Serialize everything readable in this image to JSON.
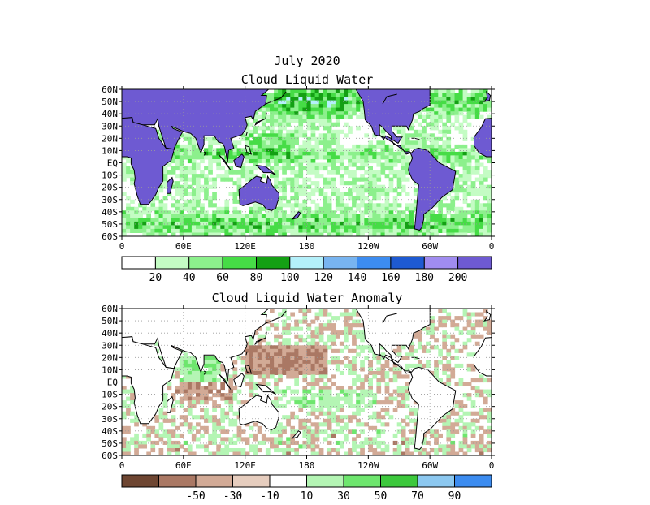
{
  "figure": {
    "date_title": "July 2020"
  },
  "chart_data": [
    {
      "type": "heatmap",
      "title": "Cloud Liquid Water",
      "region": "global ocean map",
      "lat_ticks": [
        "60N",
        "50N",
        "40N",
        "30N",
        "20N",
        "10N",
        "EQ",
        "10S",
        "20S",
        "30S",
        "40S",
        "50S",
        "60S"
      ],
      "lon_ticks": [
        "0",
        "60E",
        "120E",
        "180",
        "120W",
        "60W",
        "0"
      ],
      "lat_range": [
        -60,
        60
      ],
      "lon_range": [
        0,
        360
      ],
      "grid": true,
      "colorbar": {
        "labels": [
          "20",
          "40",
          "60",
          "80",
          "100",
          "120",
          "140",
          "160",
          "180",
          "200"
        ],
        "colors": [
          "#ffffff",
          "#c4fcc4",
          "#8cf08c",
          "#46dc46",
          "#14a014",
          "#b4f0fa",
          "#78b4f0",
          "#3c8cf0",
          "#1e5ad2",
          "#a08cf0",
          "#6e5ad2"
        ]
      },
      "land_color": "#6e5ad2"
    },
    {
      "type": "heatmap",
      "title": "Cloud Liquid Water Anomaly",
      "region": "global ocean map",
      "lat_ticks": [
        "60N",
        "50N",
        "40N",
        "30N",
        "20N",
        "10N",
        "EQ",
        "10S",
        "20S",
        "30S",
        "40S",
        "50S",
        "60S"
      ],
      "lon_ticks": [
        "0",
        "60E",
        "120E",
        "180",
        "120W",
        "60W",
        "0"
      ],
      "lat_range": [
        -60,
        60
      ],
      "lon_range": [
        0,
        360
      ],
      "grid": true,
      "colorbar": {
        "labels": [
          "-50",
          "-30",
          "-10",
          "10",
          "30",
          "50",
          "70",
          "90"
        ],
        "colors": [
          "#6e4632",
          "#aa7864",
          "#d2aa96",
          "#e6cdbe",
          "#ffffff",
          "#b4f5b4",
          "#6ee66e",
          "#3cc83c",
          "#8cc8f0",
          "#3c8cf0"
        ]
      },
      "land_color": "#ffffff"
    }
  ]
}
